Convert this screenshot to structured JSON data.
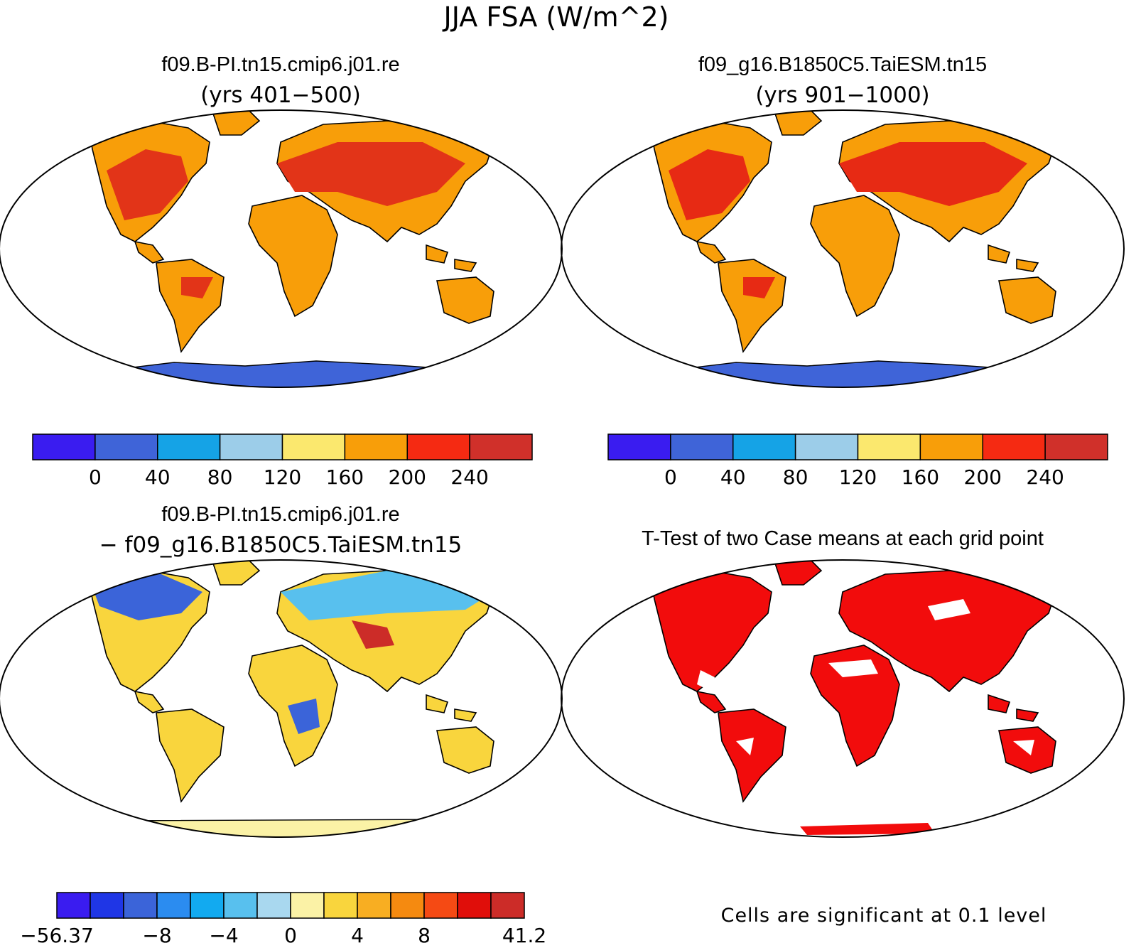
{
  "figure": {
    "title": "JJA FSA (W/m^2)"
  },
  "panels": [
    {
      "title": "f09.B-PI.tn15.cmip6.j01.re",
      "subtitle": "(yrs 401−500)",
      "colorbar": {
        "colors": [
          "#3a1cf0",
          "#3f64d8",
          "#15a3e6",
          "#9ccde9",
          "#fbe86e",
          "#f89e09",
          "#f52a12",
          "#d0302a"
        ],
        "labels": [
          "0",
          "40",
          "80",
          "120",
          "160",
          "200",
          "240"
        ]
      }
    },
    {
      "title": "f09_g16.B1850C5.TaiESM.tn15",
      "subtitle": "(yrs 901−1000)",
      "colorbar": {
        "colors": [
          "#3a1cf0",
          "#3f64d8",
          "#15a3e6",
          "#9ccde9",
          "#fbe86e",
          "#f89e09",
          "#f52a12",
          "#d0302a"
        ],
        "labels": [
          "0",
          "40",
          "80",
          "120",
          "160",
          "200",
          "240"
        ]
      }
    },
    {
      "title": "f09.B-PI.tn15.cmip6.j01.re",
      "subtitle": "− f09_g16.B1850C5.TaiESM.tn15",
      "colorbar": {
        "colors": [
          "#3a1cf0",
          "#1f36e6",
          "#3b64d9",
          "#2b8cf0",
          "#12aaf0",
          "#58c0ee",
          "#a9d8ef",
          "#fbf2a6",
          "#f9d53d",
          "#f8ae22",
          "#f58a10",
          "#f54a14",
          "#e00e0a",
          "#cc2c28"
        ],
        "labels": [
          "−56.37",
          "−8",
          "−4",
          "0",
          "4",
          "8",
          "41.2"
        ]
      }
    },
    {
      "title": "T-Test of two Case means at each grid point",
      "footnote": "Cells are significant at 0.1 level",
      "fill_color": "#f20c0c"
    }
  ]
}
